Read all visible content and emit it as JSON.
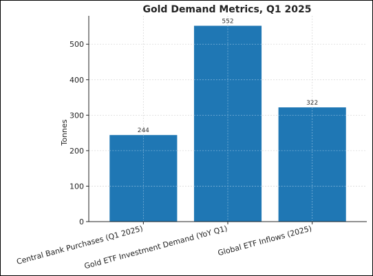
{
  "chart_data": {
    "type": "bar",
    "title": "Gold Demand Metrics, Q1 2025",
    "xlabel": "",
    "ylabel": "Tonnes",
    "categories": [
      "Central Bank Purchases (Q1 2025)",
      "Gold ETF Investment Demand (YoY Q1)",
      "Global ETF Inflows (2025)"
    ],
    "values": [
      244,
      552,
      322
    ],
    "value_labels": [
      "244",
      "552",
      "322"
    ],
    "yticks": [
      0,
      100,
      200,
      300,
      400,
      500
    ],
    "ylim": [
      0,
      580
    ],
    "grid": true,
    "bar_color": "#1f77b4",
    "grid_color": "#d9d9d9"
  }
}
